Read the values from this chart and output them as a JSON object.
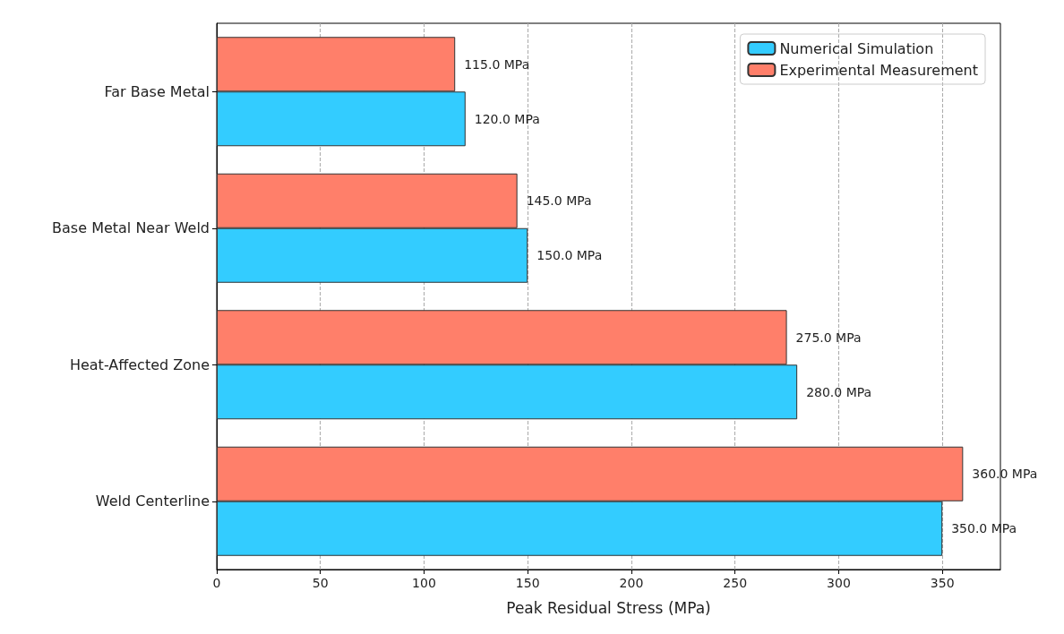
{
  "chart_data": {
    "type": "bar",
    "orientation": "horizontal",
    "xlabel": "Peak Residual Stress (MPa)",
    "categories": [
      "Far Base Metal",
      "Base Metal Near Weld",
      "Heat-Affected Zone",
      "Weld Centerline"
    ],
    "series": [
      {
        "name": "Numerical Simulation",
        "color": "#33ccff",
        "values": [
          120,
          150,
          280,
          350
        ],
        "value_labels": [
          "120.0 MPa",
          "150.0 MPa",
          "280.0 MPa",
          "350.0 MPa"
        ]
      },
      {
        "name": "Experimental Measurement",
        "color": "#ff7f6a",
        "values": [
          115,
          145,
          275,
          360
        ],
        "value_labels": [
          "115.0 MPa",
          "145.0 MPa",
          "275.0 MPa",
          "360.0 MPa"
        ]
      }
    ],
    "xlim": [
      0,
      378
    ],
    "xticks": [
      0,
      50,
      100,
      150,
      200,
      250,
      300,
      350
    ],
    "grid": "x",
    "legend": "top right"
  }
}
